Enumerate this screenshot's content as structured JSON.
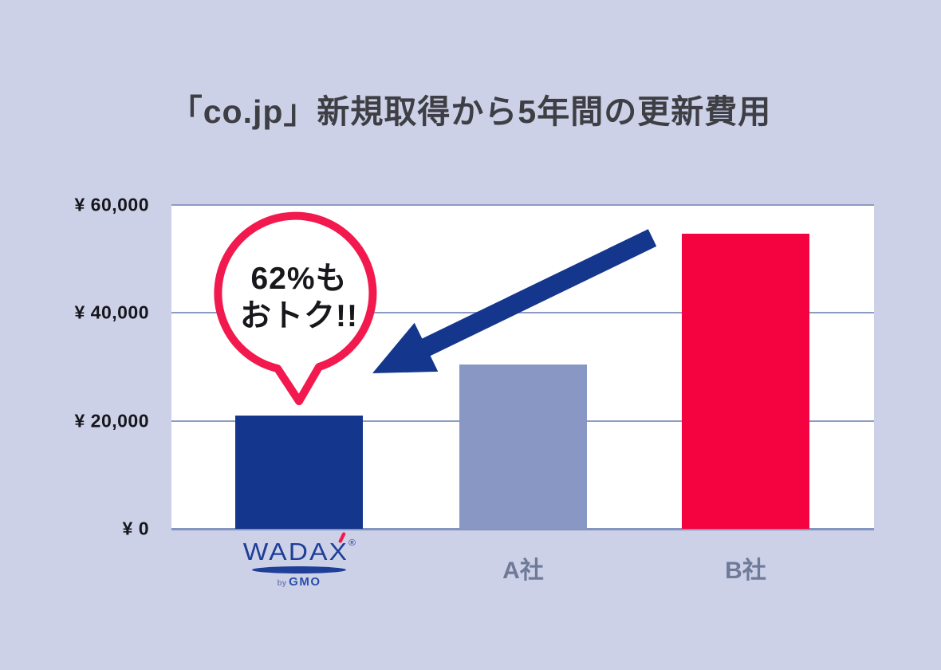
{
  "title": "「co.jp」新規取得から5年間の更新費用",
  "callout": {
    "line1": "62%も",
    "line2": "おトク!!"
  },
  "logo": {
    "brand": "WADAX",
    "registered": "®",
    "byline_prefix": "by",
    "byline_brand": "GMO"
  },
  "colors": {
    "background": "#cdd1e8",
    "plot_background": "#ffffff",
    "gridline": "#8c9bc5",
    "brand_blue": "#14368c",
    "brand_blue_logo": "#1e3e97",
    "company_a_gray_blue": "#8997c4",
    "company_b_red": "#f50340",
    "callout_red": "#f2194e",
    "title_text": "#3e3f44",
    "xlabel_text": "#6f7a97"
  },
  "chart_data": {
    "type": "bar",
    "title": "「co.jp」新規取得から5年間の更新費用",
    "categories": [
      "WADAX",
      "A社",
      "B社"
    ],
    "values": [
      21000,
      30500,
      54700
    ],
    "bar_colors": [
      "#14368c",
      "#8997c4",
      "#f50340"
    ],
    "xlabel": "",
    "ylabel": "",
    "ylim": [
      0,
      60000
    ],
    "yticks": [
      {
        "value": 0,
        "label": "¥ 0"
      },
      {
        "value": 20000,
        "label": "¥ 20,000"
      },
      {
        "value": 40000,
        "label": "¥ 40,000"
      },
      {
        "value": 60000,
        "label": "¥ 60,000"
      }
    ],
    "grid": true,
    "legend": false,
    "annotation": {
      "text": "62%もおトク!!",
      "arrow_from": "B社",
      "arrow_points_to": "WADAX"
    }
  }
}
